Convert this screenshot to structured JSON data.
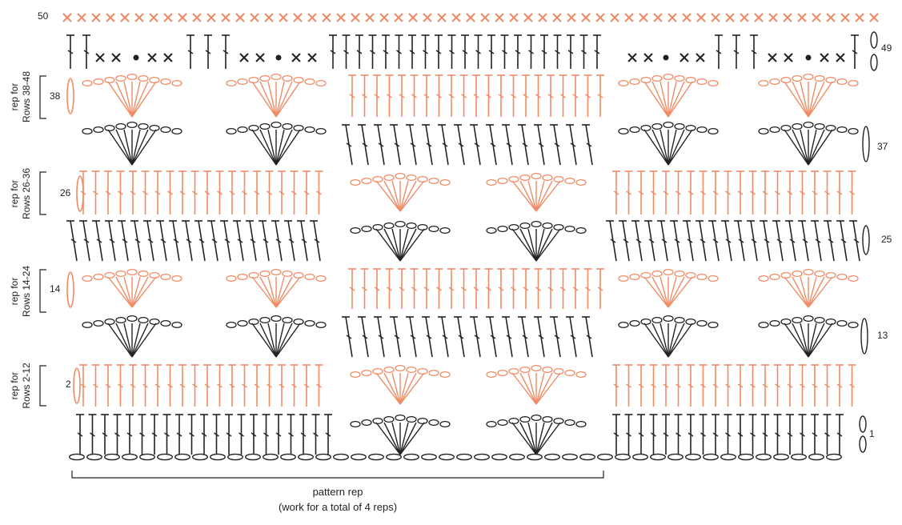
{
  "row_labels": {
    "r1": "1",
    "r2": "2",
    "r13": "13",
    "r14": "14",
    "r25": "25",
    "r26": "26",
    "r37": "37",
    "r38": "38",
    "r49": "49",
    "r50": "50"
  },
  "side_labels": {
    "a1": "rep for",
    "a2": "Rows 2-12",
    "b1": "rep for",
    "b2": "Rows 14-24",
    "c1": "rep for",
    "c2": "Rows 26-36",
    "d1": "rep for",
    "d2": "Rows 38-48"
  },
  "footer": {
    "line1": "pattern rep",
    "line2": "(work for a total of 4 reps)"
  },
  "colors": {
    "orange": "#ee8c66",
    "black": "#222222"
  },
  "symbols": [
    "chain",
    "double-crochet",
    "single-crochet",
    "slip-stitch",
    "shell-fan"
  ]
}
